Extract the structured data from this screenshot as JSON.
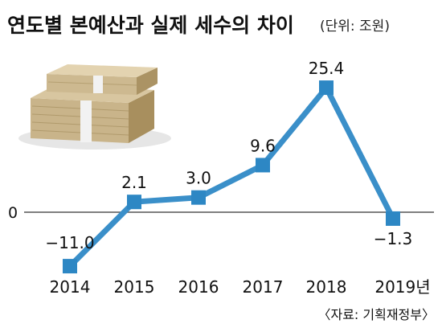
{
  "title": "연도별 본예산과 실제 세수의 차이",
  "unit": "(단위: 조원)",
  "source": "〈자료: 기획재정부〉",
  "zero_label": "0",
  "chart_data": {
    "type": "line",
    "categories": [
      "2014",
      "2015",
      "2016",
      "2017",
      "2018",
      "2019년"
    ],
    "values": [
      -11.0,
      2.1,
      3.0,
      9.6,
      25.4,
      -1.3
    ],
    "value_labels": [
      "−11.0",
      "2.1",
      "3.0",
      "9.6",
      "25.4",
      "−1.3"
    ],
    "ylim": [
      -14,
      30
    ],
    "grid": false,
    "legend": "none",
    "colors": {
      "line": "#3a8fc9",
      "marker": "#2d87c4",
      "zero_line": "#555555"
    }
  }
}
